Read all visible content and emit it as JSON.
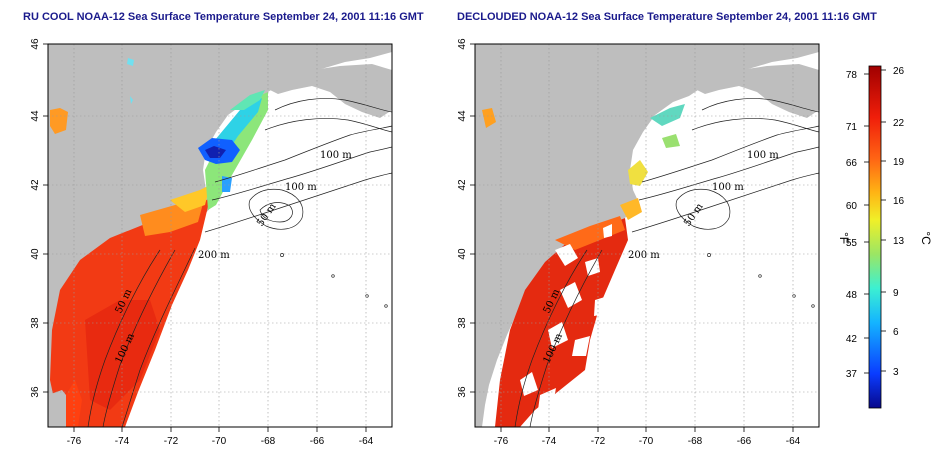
{
  "panels": [
    {
      "id": "left",
      "title": "RU COOL NOAA-12 Sea Surface Temperature September 24, 2001 11:16 GMT",
      "x_ticks": [
        "-76",
        "-74",
        "-72",
        "-70",
        "-68",
        "-66",
        "-64"
      ],
      "y_ticks": [
        "46",
        "44",
        "42",
        "40",
        "38",
        "36"
      ],
      "contour_labels": [
        "100 m",
        "100 m",
        "50 m",
        "200 m",
        "50 m",
        "100 m"
      ]
    },
    {
      "id": "right",
      "title": "DECLOUDED NOAA-12 Sea Surface Temperature September 24, 2001 11:16 GMT",
      "x_ticks": [
        "-76",
        "-74",
        "-72",
        "-70",
        "-68",
        "-66",
        "-64"
      ],
      "y_ticks": [
        "46",
        "44",
        "42",
        "40",
        "38",
        "36"
      ],
      "contour_labels": [
        "100 m",
        "100 m",
        "50 m",
        "200 m",
        "50 m",
        "100 m"
      ]
    }
  ],
  "colorbar": {
    "fahrenheit_ticks": [
      "78",
      "71",
      "66",
      "60",
      "55",
      "48",
      "42",
      "37"
    ],
    "celsius_ticks": [
      "26",
      "22",
      "19",
      "16",
      "13",
      "9",
      "6",
      "3"
    ],
    "fahrenheit_unit": "°F",
    "celsius_unit": "°C",
    "range_c": [
      0,
      26
    ],
    "colors": [
      "#08088c",
      "#0a3cff",
      "#14b4ff",
      "#3cf0d2",
      "#9be664",
      "#f0f028",
      "#ffb414",
      "#ff6414",
      "#f01e0a",
      "#a00000"
    ]
  },
  "colors": {
    "land": "#bebebe",
    "ocean": "#ffffff",
    "title": "#1a1a8c"
  }
}
